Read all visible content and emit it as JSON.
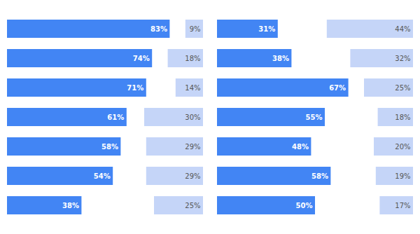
{
  "chart_data": [
    {
      "type": "bar",
      "orientation": "horizontal",
      "categories": [
        null,
        null,
        null,
        null,
        null,
        null,
        null
      ],
      "series": [
        {
          "color": "#4285f4",
          "values": [
            83,
            74,
            71,
            61,
            58,
            54,
            38
          ],
          "value_labels": [
            "83%",
            "74%",
            "71%",
            "61%",
            "58%",
            "54%",
            "38%"
          ]
        },
        {
          "color": "#c5d5f8",
          "values": [
            9,
            18,
            14,
            30,
            29,
            29,
            25
          ],
          "value_labels": [
            "9%",
            "18%",
            "14%",
            "30%",
            "29%",
            "29%",
            "25%"
          ]
        }
      ],
      "xlim": [
        0,
        100
      ],
      "data_labels": true,
      "tick_labels": false
    },
    {
      "type": "bar",
      "orientation": "horizontal",
      "categories": [
        null,
        null,
        null,
        null,
        null,
        null,
        null
      ],
      "series": [
        {
          "color": "#4285f4",
          "values": [
            31,
            38,
            67,
            55,
            48,
            58,
            50
          ],
          "value_labels": [
            "31%",
            "38%",
            "67%",
            "55%",
            "48%",
            "58%",
            "50%"
          ]
        },
        {
          "color": "#c5d5f8",
          "values": [
            44,
            32,
            25,
            18,
            20,
            19,
            17
          ],
          "value_labels": [
            "44%",
            "32%",
            "25%",
            "18%",
            "20%",
            "19%",
            "17%"
          ]
        }
      ],
      "xlim": [
        0,
        100
      ],
      "data_labels": true,
      "tick_labels": false
    }
  ]
}
